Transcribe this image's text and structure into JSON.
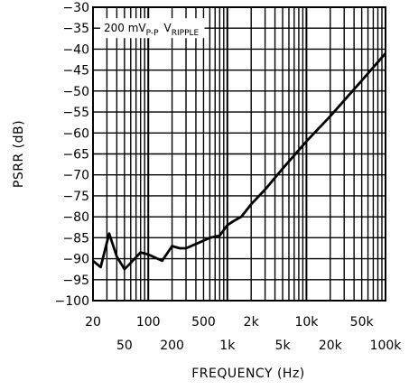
{
  "chart_data": {
    "type": "line",
    "xlabel": "FREQUENCY (Hz)",
    "ylabel": "PSRR (dB)",
    "x_scale": "log",
    "xlim": [
      20,
      100000
    ],
    "ylim": [
      -100,
      -30
    ],
    "grid": true,
    "x_ticks_top": [
      "20",
      "100",
      "500",
      "2k",
      "10k",
      "50k"
    ],
    "x_ticks_bottom": [
      "50",
      "200",
      "1k",
      "5k",
      "20k",
      "100k"
    ],
    "y_ticks": [
      "-30",
      "-35",
      "-40",
      "-45",
      "-50",
      "-55",
      "-60",
      "-65",
      "-70",
      "-75",
      "-80",
      "-85",
      "-90",
      "-95",
      "-100"
    ],
    "annotation": {
      "main": "200 mV",
      "sub1": "P-P",
      "label2": "V",
      "sub2": "RIPPLE"
    },
    "series": [
      {
        "x": [
          20,
          25,
          32,
          40,
          50,
          60,
          80,
          100,
          150,
          200,
          250,
          300,
          400,
          600,
          800,
          1000,
          1200,
          1500,
          2000,
          3000,
          5000,
          10000,
          20000,
          50000,
          100000
        ],
        "y": [
          -90.5,
          -92,
          -84,
          -89.5,
          -92.5,
          -91,
          -88.5,
          -89,
          -90.5,
          -87,
          -87.5,
          -87.5,
          -86.5,
          -85,
          -84.5,
          -82,
          -81,
          -80,
          -77,
          -73.5,
          -68.5,
          -62,
          -56,
          -47.5,
          -41
        ]
      }
    ]
  }
}
